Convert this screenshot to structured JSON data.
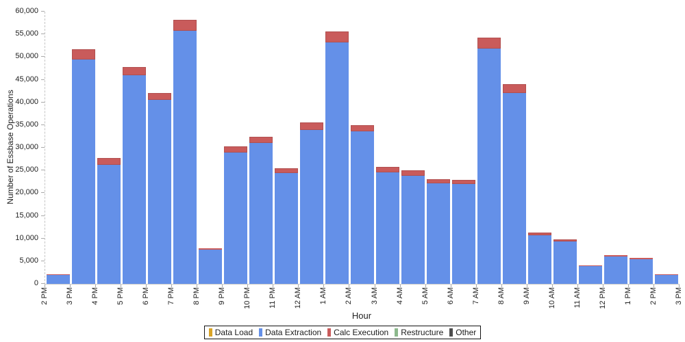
{
  "chart_data": {
    "type": "bar",
    "stacked": true,
    "title": "",
    "xlabel": "Hour",
    "ylabel": "Number of Essbase Operations",
    "ylim": [
      0,
      60000
    ],
    "grid": false,
    "legend_position": "bottom",
    "y_ticks": [
      {
        "value": 0,
        "label": "0"
      },
      {
        "value": 5000,
        "label": "5,000"
      },
      {
        "value": 10000,
        "label": "10,000"
      },
      {
        "value": 15000,
        "label": "15,000"
      },
      {
        "value": 20000,
        "label": "20,000"
      },
      {
        "value": 25000,
        "label": "25,000"
      },
      {
        "value": 30000,
        "label": "30,000"
      },
      {
        "value": 35000,
        "label": "35,000"
      },
      {
        "value": 40000,
        "label": "40,000"
      },
      {
        "value": 45000,
        "label": "45,000"
      },
      {
        "value": 50000,
        "label": "50,000"
      },
      {
        "value": 55000,
        "label": "55,000"
      },
      {
        "value": 60000,
        "label": "60,000"
      }
    ],
    "x_tick_labels": [
      "2 PM",
      "3 PM",
      "4 PM",
      "5 PM",
      "6 PM",
      "7 PM",
      "8 PM",
      "9 PM",
      "10 PM",
      "11 PM",
      "12 AM",
      "1 AM",
      "2 AM",
      "3 AM",
      "4 AM",
      "5 AM",
      "6 AM",
      "7 AM",
      "8 AM",
      "9 AM",
      "10 AM",
      "11 AM",
      "12 PM",
      "1 PM",
      "2 PM",
      "3 PM"
    ],
    "bar_categories": [
      "2 PM",
      "3 PM",
      "4 PM",
      "5 PM",
      "6 PM",
      "7 PM",
      "8 PM",
      "9 PM",
      "10 PM",
      "11 PM",
      "12 AM",
      "1 AM",
      "2 AM",
      "3 AM",
      "4 AM",
      "5 AM",
      "6 AM",
      "7 AM",
      "8 AM",
      "9 AM",
      "10 AM",
      "11 AM",
      "12 PM",
      "1 PM",
      "2 PM"
    ],
    "series": [
      {
        "name": "Data Load",
        "color": "#d9a427",
        "values": [
          0,
          0,
          0,
          0,
          0,
          0,
          0,
          0,
          0,
          0,
          0,
          0,
          0,
          0,
          0,
          0,
          0,
          0,
          0,
          0,
          0,
          0,
          0,
          0,
          0
        ]
      },
      {
        "name": "Data Extraction",
        "color": "#6490e8",
        "values": [
          1900,
          49400,
          26200,
          46000,
          40600,
          55800,
          7500,
          28900,
          31000,
          24400,
          33900,
          53200,
          33600,
          24500,
          23800,
          22100,
          22000,
          51900,
          42000,
          10700,
          9300,
          3950,
          6000,
          5500,
          1900
        ]
      },
      {
        "name": "Calc Execution",
        "color": "#c95b5b",
        "border_color": "#b14f4f",
        "values": [
          150,
          2250,
          1600,
          1800,
          1500,
          2450,
          300,
          1400,
          1450,
          1100,
          1700,
          2400,
          1450,
          1350,
          1200,
          900,
          850,
          2400,
          2050,
          600,
          500,
          150,
          300,
          300,
          150
        ]
      },
      {
        "name": "Restructure",
        "color": "#8db98d",
        "values": [
          0,
          0,
          0,
          0,
          0,
          0,
          0,
          0,
          0,
          0,
          0,
          0,
          0,
          0,
          0,
          0,
          0,
          0,
          0,
          0,
          0,
          0,
          0,
          0,
          0
        ]
      },
      {
        "name": "Other",
        "color": "#4d4d4d",
        "values": [
          0,
          0,
          0,
          0,
          0,
          0,
          0,
          0,
          0,
          0,
          0,
          0,
          0,
          0,
          0,
          0,
          0,
          0,
          0,
          0,
          0,
          0,
          0,
          0,
          0
        ]
      }
    ]
  }
}
